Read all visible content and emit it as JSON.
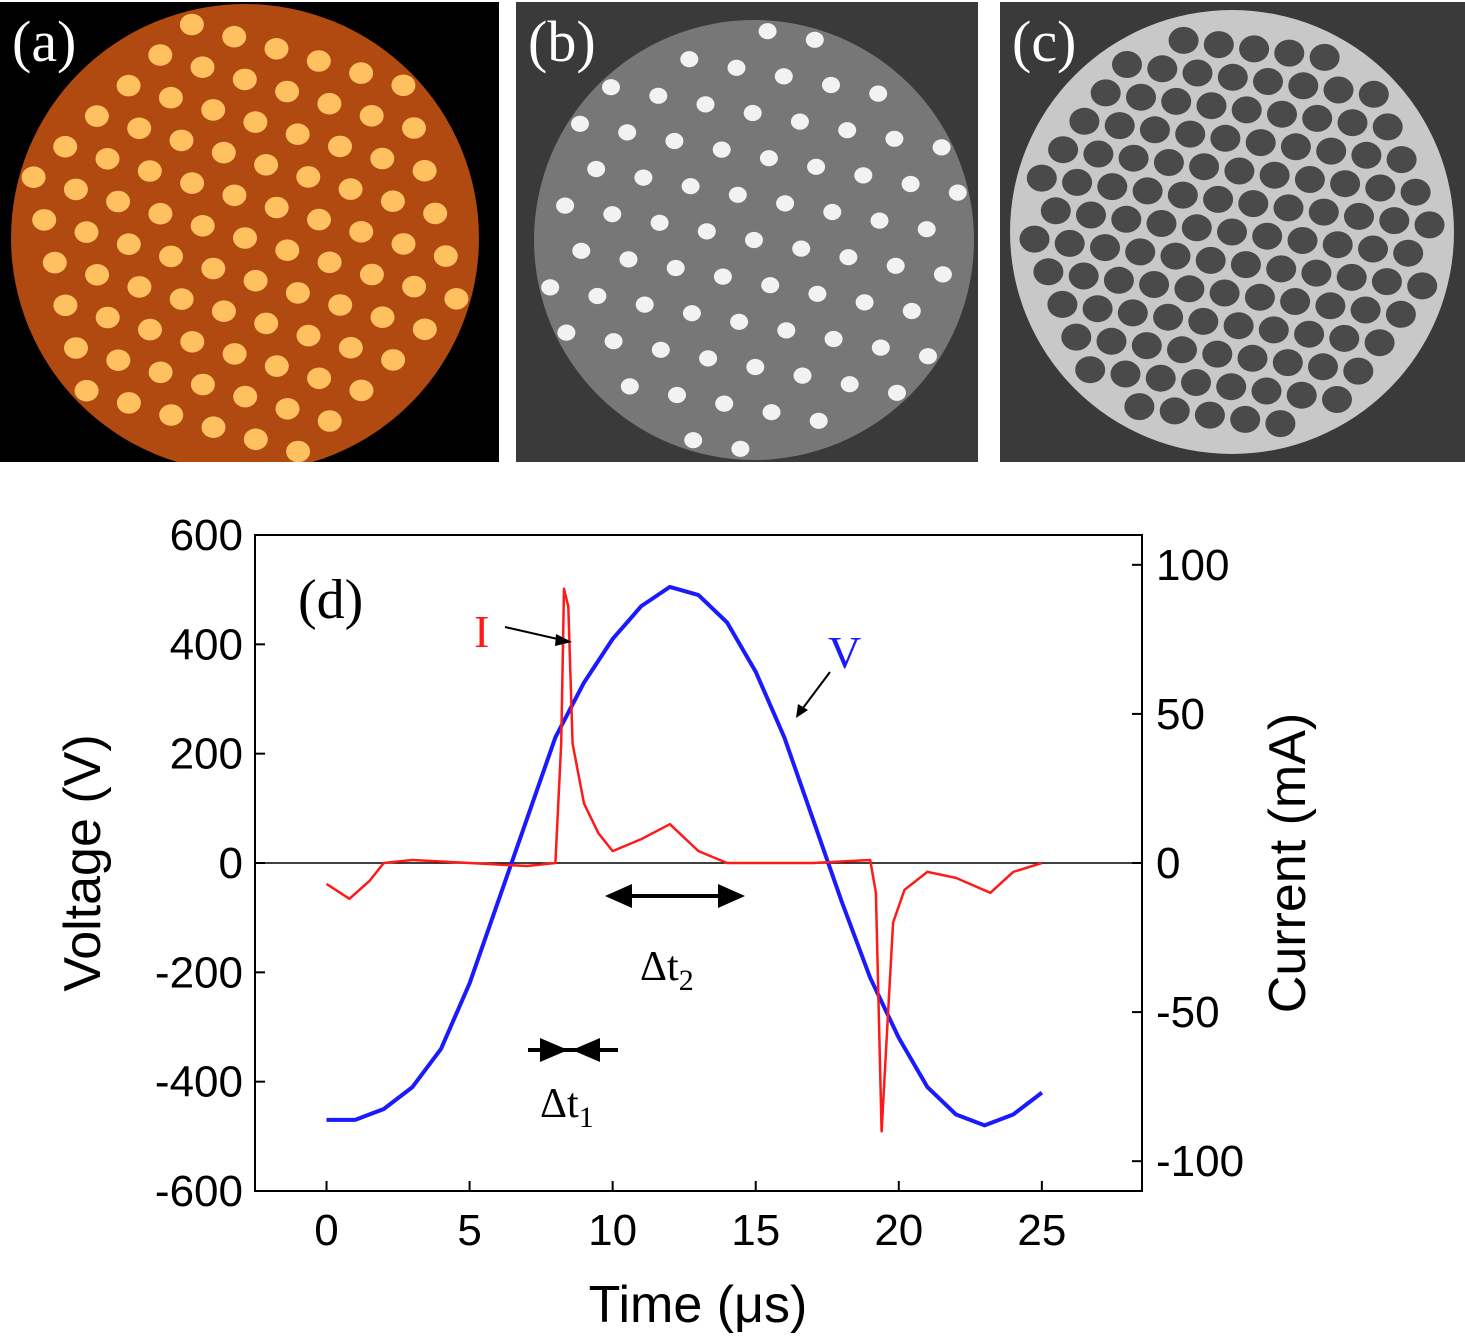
{
  "panels": [
    {
      "label": "(a)",
      "style": "orange discharge pattern, bright spots hexagonal lattice"
    },
    {
      "label": "(b)",
      "style": "grayscale, bright spots hexagonal lattice"
    },
    {
      "label": "(c)",
      "style": "grayscale, dark holes hexagonal honeycomb"
    }
  ],
  "colors": {
    "voltage": "#1a1aff",
    "current": "#ff1a1a",
    "panel_a_bg": "#000000",
    "panel_a_disk": "#b04a10",
    "panel_a_spot": "#ffc060",
    "panel_gray_bg": "#3a3a3a",
    "panel_gray_disk": "#777777",
    "panel_gray_spot": "#f2f2f2",
    "panel_c_hole": "#4a4a4a",
    "panel_c_disk": "#c8c8c8"
  },
  "chart_data": {
    "type": "line",
    "panel_label": "(d)",
    "xlabel": "Time (μs)",
    "ylabel_left": "Voltage (V)",
    "ylabel_right": "Current (mA)",
    "xlim": [
      -2.5,
      28.5
    ],
    "ylim_left": [
      -600,
      600
    ],
    "ylim_right": [
      -110,
      110
    ],
    "xticks": [
      0,
      5,
      10,
      15,
      20,
      25
    ],
    "yticks_left": [
      -600,
      -400,
      -200,
      0,
      200,
      400,
      600
    ],
    "yticks_right": [
      -100,
      -50,
      0,
      50,
      100
    ],
    "zero_line": true,
    "series": [
      {
        "name": "V",
        "axis": "left",
        "x": [
          0,
          1,
          2,
          3,
          4,
          5,
          6,
          7,
          8,
          9,
          10,
          11,
          12,
          13,
          14,
          15,
          16,
          17,
          18,
          19,
          20,
          21,
          22,
          23,
          24,
          25
        ],
        "values": [
          -470,
          -470,
          -450,
          -410,
          -340,
          -220,
          -70,
          80,
          230,
          330,
          410,
          470,
          505,
          490,
          440,
          350,
          230,
          80,
          -70,
          -210,
          -320,
          -410,
          -460,
          -480,
          -460,
          -420
        ]
      },
      {
        "name": "I",
        "axis": "right",
        "x": [
          0,
          0.8,
          1.5,
          2,
          3,
          5,
          7,
          8.0,
          8.2,
          8.3,
          8.45,
          8.6,
          9,
          9.5,
          10,
          11,
          12,
          13,
          14,
          17,
          19.0,
          19.2,
          19.4,
          19.6,
          19.8,
          20.2,
          21,
          22,
          23.2,
          24,
          25
        ],
        "values": [
          -7,
          -12,
          -6,
          0,
          1,
          0,
          -1,
          0,
          40,
          92,
          86,
          40,
          20,
          10,
          4,
          8,
          13,
          4,
          0,
          0,
          1,
          -10,
          -90,
          -55,
          -20,
          -9,
          -3,
          -5,
          -10,
          -3,
          0
        ]
      }
    ],
    "annotations": [
      {
        "text": "I"
      },
      {
        "text": "V"
      },
      {
        "text": "Δt",
        "sub": "1",
        "span_x": [
          7,
          10
        ]
      },
      {
        "text": "Δt",
        "sub": "2",
        "span_x": [
          9.5,
          14
        ]
      }
    ]
  }
}
